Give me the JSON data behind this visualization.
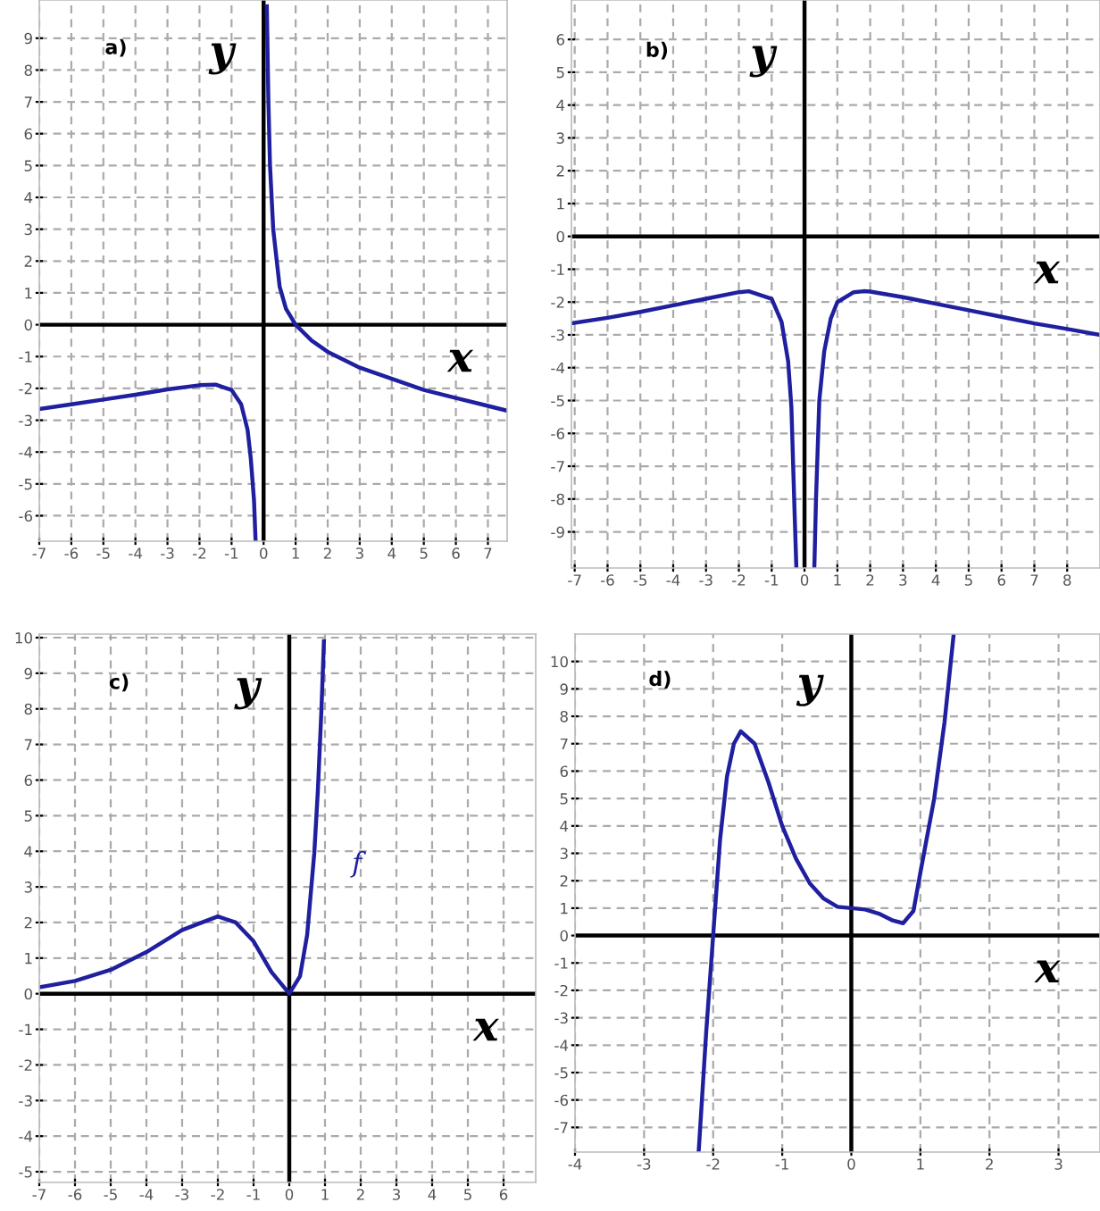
{
  "chart_data": [
    {
      "type": "line",
      "title": "a)",
      "xlabel": "x",
      "ylabel": "y",
      "grid": true,
      "line_style": "solid",
      "marker": "none",
      "xlim": [
        -7,
        7.6
      ],
      "ylim": [
        -6.8,
        10.2
      ],
      "xticks": [
        -7,
        -6,
        -5,
        -4,
        -3,
        -2,
        -1,
        0,
        1,
        2,
        3,
        4,
        5,
        6,
        7
      ],
      "yticks": [
        -6,
        -5,
        -4,
        -3,
        -2,
        -1,
        0,
        1,
        2,
        3,
        4,
        5,
        6,
        7,
        8,
        9
      ],
      "series": [
        {
          "color": "#1f1f9f",
          "x": [
            -7,
            -6,
            -5,
            -4,
            -3,
            -2,
            -1.5,
            -1,
            -0.7,
            -0.5,
            -0.4,
            -0.3,
            -0.25,
            null,
            0.1,
            0.15,
            0.2,
            0.3,
            0.5,
            0.7,
            1,
            1.5,
            2,
            3,
            4,
            5,
            6,
            7,
            7.6
          ],
          "values": [
            -2.65,
            -2.5,
            -2.35,
            -2.2,
            -2.03,
            -1.9,
            -1.88,
            -2.05,
            -2.5,
            -3.3,
            -4.2,
            -5.5,
            -6.8,
            null,
            10,
            7,
            5,
            3,
            1.2,
            0.5,
            0,
            -0.5,
            -0.85,
            -1.35,
            -1.7,
            -2.05,
            -2.3,
            -2.55,
            -2.7
          ]
        }
      ]
    },
    {
      "type": "line",
      "title": "b)",
      "xlabel": "x",
      "ylabel": "y",
      "grid": true,
      "line_style": "solid",
      "marker": "none",
      "xlim": [
        -7.1,
        9
      ],
      "ylim": [
        -10.1,
        7.2
      ],
      "xticks": [
        -7,
        -6,
        -5,
        -4,
        -3,
        -2,
        -1,
        0,
        1,
        2,
        3,
        4,
        5,
        6,
        7,
        8
      ],
      "yticks": [
        -9,
        -8,
        -7,
        -6,
        -5,
        -4,
        -3,
        -2,
        -1,
        0,
        1,
        2,
        3,
        4,
        5,
        6
      ],
      "series": [
        {
          "color": "#1f1f9f",
          "x": [
            -7.1,
            -6,
            -5,
            -4,
            -3,
            -2,
            -1.7,
            -1,
            -0.7,
            -0.5,
            -0.4,
            -0.3,
            -0.25,
            null,
            0.3,
            0.35,
            0.45,
            0.6,
            0.8,
            1,
            1.5,
            1.8,
            2,
            3,
            4,
            5,
            6,
            7,
            8,
            9
          ],
          "values": [
            -2.65,
            -2.48,
            -2.3,
            -2.1,
            -1.9,
            -1.7,
            -1.67,
            -1.9,
            -2.6,
            -3.8,
            -5.2,
            -8.5,
            -10.05,
            null,
            -10.05,
            -8,
            -5,
            -3.5,
            -2.5,
            -2.0,
            -1.7,
            -1.67,
            -1.68,
            -1.85,
            -2.05,
            -2.25,
            -2.45,
            -2.65,
            -2.82,
            -3.0
          ]
        }
      ]
    },
    {
      "type": "line",
      "title": "c)",
      "xlabel": "x",
      "ylabel": "y",
      "grid": true,
      "line_style": "solid",
      "marker": "none",
      "xlim": [
        -7,
        6.9
      ],
      "ylim": [
        -5.3,
        10.1
      ],
      "xticks": [
        -7,
        -6,
        -5,
        -4,
        -3,
        -2,
        -1,
        0,
        1,
        2,
        3,
        4,
        5,
        6
      ],
      "yticks": [
        -5,
        -4,
        -3,
        -2,
        -1,
        0,
        1,
        2,
        3,
        4,
        5,
        6,
        7,
        8,
        9,
        10
      ],
      "annotations": [
        "f"
      ],
      "series": [
        {
          "color": "#1f1f9f",
          "x": [
            -7,
            -6,
            -5,
            -4,
            -3,
            -2,
            -1.5,
            -1,
            -0.5,
            0,
            0.3,
            0.5,
            0.7,
            0.8,
            0.9,
            0.97
          ],
          "values": [
            0.18,
            0.36,
            0.67,
            1.17,
            1.79,
            2.17,
            2.0,
            1.47,
            0.61,
            0,
            0.49,
            1.65,
            3.95,
            5.7,
            7.97,
            9.9
          ]
        }
      ]
    },
    {
      "type": "line",
      "title": "d)",
      "xlabel": "x",
      "ylabel": "y",
      "grid": true,
      "line_style": "solid",
      "marker": "none",
      "xlim": [
        -4,
        3.6
      ],
      "ylim": [
        -7.9,
        11
      ],
      "xticks": [
        -4,
        -3,
        -2,
        -1,
        0,
        1,
        2,
        3
      ],
      "yticks": [
        -7,
        -6,
        -5,
        -4,
        -3,
        -2,
        -1,
        0,
        1,
        2,
        3,
        4,
        5,
        6,
        7,
        8,
        9,
        10
      ],
      "series": [
        {
          "color": "#1f1f9f",
          "x": [
            -2.21,
            -2.1,
            -2,
            -1.9,
            -1.8,
            -1.7,
            -1.6,
            -1.4,
            -1.2,
            -1,
            -0.8,
            -0.6,
            -0.4,
            -0.2,
            0,
            0.2,
            0.4,
            0.6,
            0.75,
            0.9,
            1.0,
            1.2,
            1.35,
            1.48
          ],
          "values": [
            -7.9,
            -3.5,
            0,
            3.5,
            5.8,
            7.0,
            7.45,
            7.0,
            5.6,
            4.0,
            2.8,
            1.9,
            1.35,
            1.05,
            1.0,
            0.95,
            0.8,
            0.55,
            0.45,
            0.9,
            2.3,
            5.0,
            7.8,
            10.95
          ]
        }
      ]
    }
  ]
}
